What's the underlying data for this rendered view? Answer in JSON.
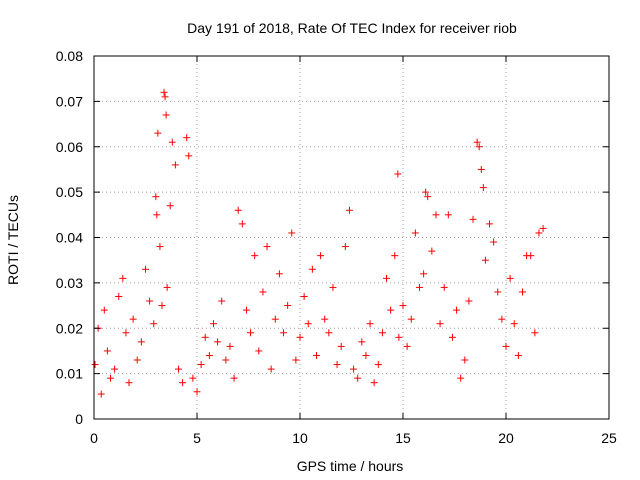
{
  "chart_data": {
    "type": "scatter",
    "title": "Day 191 of 2018, Rate Of TEC Index for receiver riob",
    "xlabel": "GPS time / hours",
    "ylabel": "ROTI / TECUs",
    "xlim": [
      0,
      25
    ],
    "ylim": [
      0,
      0.08
    ],
    "xticks": [
      "0",
      "5",
      "10",
      "15",
      "20",
      "25"
    ],
    "yticks": [
      "0",
      "0.01",
      "0.02",
      "0.03",
      "0.04",
      "0.05",
      "0.06",
      "0.07",
      "0.08"
    ],
    "grid": true,
    "marker": "+",
    "color": "#ff0000",
    "series": [
      {
        "name": "riob",
        "x": [
          0.05,
          0.2,
          0.35,
          0.5,
          0.65,
          0.8,
          1.0,
          1.2,
          1.4,
          1.55,
          1.7,
          1.9,
          2.1,
          2.3,
          2.5,
          2.7,
          2.9,
          3.0,
          3.05,
          3.1,
          3.2,
          3.3,
          3.4,
          3.45,
          3.5,
          3.55,
          3.7,
          3.8,
          3.95,
          4.1,
          4.3,
          4.5,
          4.6,
          4.8,
          5.0,
          5.2,
          5.4,
          5.6,
          5.8,
          6.0,
          6.2,
          6.4,
          6.6,
          6.8,
          7.0,
          7.2,
          7.4,
          7.6,
          7.8,
          8.0,
          8.2,
          8.4,
          8.6,
          8.8,
          9.0,
          9.2,
          9.4,
          9.6,
          9.8,
          10.0,
          10.2,
          10.4,
          10.6,
          10.8,
          11.0,
          11.2,
          11.4,
          11.6,
          11.8,
          12.0,
          12.2,
          12.4,
          12.6,
          12.8,
          13.0,
          13.2,
          13.4,
          13.6,
          13.8,
          14.0,
          14.2,
          14.4,
          14.6,
          14.75,
          14.8,
          15.0,
          15.2,
          15.4,
          15.6,
          15.8,
          16.0,
          16.1,
          16.2,
          16.4,
          16.6,
          16.8,
          17.0,
          17.2,
          17.4,
          17.6,
          17.8,
          18.0,
          18.2,
          18.4,
          18.6,
          18.7,
          18.8,
          18.9,
          19.0,
          19.2,
          19.4,
          19.6,
          19.8,
          20.0,
          20.2,
          20.4,
          20.6,
          20.8,
          21.0,
          21.2,
          21.4,
          21.6,
          21.8
        ],
        "y": [
          0.012,
          0.02,
          0.0055,
          0.024,
          0.015,
          0.009,
          0.011,
          0.027,
          0.031,
          0.019,
          0.008,
          0.022,
          0.013,
          0.017,
          0.033,
          0.026,
          0.021,
          0.049,
          0.045,
          0.063,
          0.038,
          0.025,
          0.072,
          0.071,
          0.067,
          0.029,
          0.047,
          0.061,
          0.056,
          0.011,
          0.008,
          0.062,
          0.058,
          0.009,
          0.006,
          0.012,
          0.018,
          0.014,
          0.021,
          0.017,
          0.026,
          0.013,
          0.016,
          0.009,
          0.046,
          0.043,
          0.024,
          0.019,
          0.036,
          0.015,
          0.028,
          0.038,
          0.011,
          0.022,
          0.032,
          0.019,
          0.025,
          0.041,
          0.013,
          0.018,
          0.027,
          0.021,
          0.033,
          0.014,
          0.036,
          0.022,
          0.019,
          0.029,
          0.012,
          0.016,
          0.038,
          0.046,
          0.011,
          0.009,
          0.017,
          0.014,
          0.021,
          0.008,
          0.012,
          0.019,
          0.031,
          0.024,
          0.036,
          0.054,
          0.018,
          0.025,
          0.016,
          0.022,
          0.041,
          0.029,
          0.032,
          0.05,
          0.049,
          0.037,
          0.045,
          0.021,
          0.029,
          0.045,
          0.018,
          0.024,
          0.009,
          0.013,
          0.026,
          0.044,
          0.061,
          0.06,
          0.055,
          0.051,
          0.035,
          0.043,
          0.039,
          0.028,
          0.022,
          0.016,
          0.031,
          0.021,
          0.014,
          0.028,
          0.036,
          0.036,
          0.019,
          0.041,
          0.042
        ]
      }
    ]
  }
}
